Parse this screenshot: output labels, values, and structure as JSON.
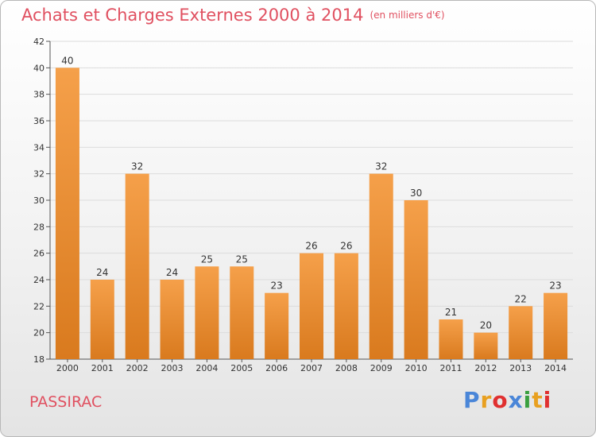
{
  "header": {
    "title": "Achats et Charges Externes 2000 à 2014",
    "unit": "(en milliers d'€)"
  },
  "footer": {
    "town": "PASSIRAC",
    "brand": "Proxiti"
  },
  "colors": {
    "bar_top": "#f5a04a",
    "bar_bottom": "#d97a1e",
    "title": "#e05060",
    "brand": [
      "#4a86d8",
      "#e8a020",
      "#e03030",
      "#4a86d8",
      "#3aa040",
      "#e8a020",
      "#e03030"
    ]
  },
  "chart_data": {
    "type": "bar",
    "title": "Achats et Charges Externes 2000 à 2014",
    "categories": [
      "2000",
      "2001",
      "2002",
      "2003",
      "2004",
      "2005",
      "2006",
      "2007",
      "2008",
      "2009",
      "2010",
      "2011",
      "2012",
      "2013",
      "2014"
    ],
    "values": [
      40,
      24,
      32,
      24,
      25,
      25,
      23,
      26,
      26,
      32,
      30,
      21,
      20,
      22,
      23
    ],
    "ylim": [
      18,
      42
    ],
    "yticks": [
      18,
      20,
      22,
      24,
      26,
      28,
      30,
      32,
      34,
      36,
      38,
      40,
      42
    ],
    "grid": true,
    "xlabel": "",
    "ylabel": ""
  }
}
